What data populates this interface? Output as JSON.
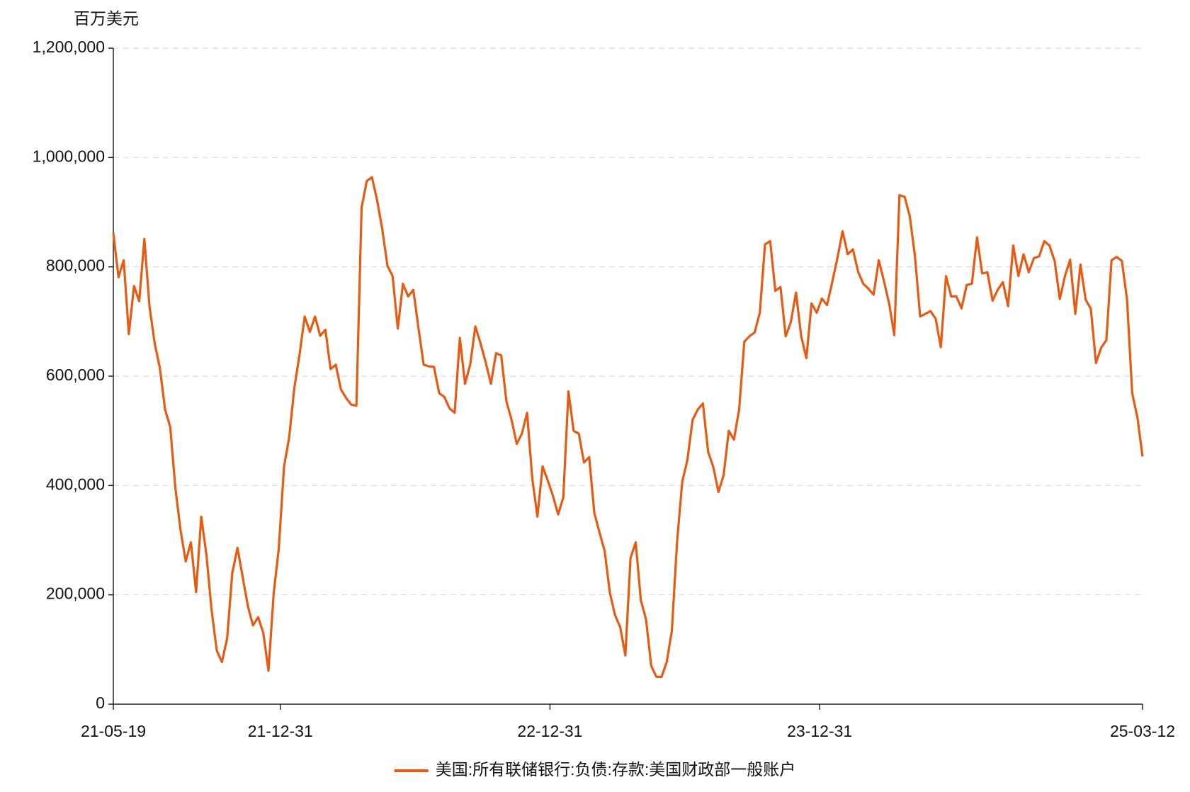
{
  "chart_data": {
    "type": "line",
    "y_label": "百万美元",
    "x": [
      "21-05-19",
      "21-05-26",
      "21-06-02",
      "21-06-09",
      "21-06-16",
      "21-06-23",
      "21-06-30",
      "21-07-07",
      "21-07-14",
      "21-07-21",
      "21-07-28",
      "21-08-04",
      "21-08-11",
      "21-08-18",
      "21-08-25",
      "21-09-01",
      "21-09-08",
      "21-09-15",
      "21-09-22",
      "21-09-29",
      "21-10-06",
      "21-10-13",
      "21-10-20",
      "21-10-27",
      "21-11-03",
      "21-11-10",
      "21-11-17",
      "21-11-24",
      "21-12-01",
      "21-12-08",
      "21-12-15",
      "21-12-22",
      "21-12-29",
      "22-01-05",
      "22-01-12",
      "22-01-19",
      "22-01-26",
      "22-02-02",
      "22-02-09",
      "22-02-16",
      "22-02-23",
      "22-03-02",
      "22-03-09",
      "22-03-16",
      "22-03-23",
      "22-03-30",
      "22-04-06",
      "22-04-13",
      "22-04-20",
      "22-04-27",
      "22-05-04",
      "22-05-11",
      "22-05-18",
      "22-05-25",
      "22-06-01",
      "22-06-08",
      "22-06-15",
      "22-06-22",
      "22-06-29",
      "22-07-06",
      "22-07-13",
      "22-07-20",
      "22-07-27",
      "22-08-03",
      "22-08-10",
      "22-08-17",
      "22-08-24",
      "22-08-31",
      "22-09-07",
      "22-09-14",
      "22-09-21",
      "22-09-28",
      "22-10-05",
      "22-10-12",
      "22-10-19",
      "22-10-26",
      "22-11-02",
      "22-11-09",
      "22-11-16",
      "22-11-23",
      "22-11-30",
      "22-12-07",
      "22-12-14",
      "22-12-21",
      "22-12-28",
      "23-01-04",
      "23-01-11",
      "23-01-18",
      "23-01-25",
      "23-02-01",
      "23-02-08",
      "23-02-15",
      "23-02-22",
      "23-03-01",
      "23-03-08",
      "23-03-15",
      "23-03-22",
      "23-03-29",
      "23-04-05",
      "23-04-12",
      "23-04-19",
      "23-04-26",
      "23-05-03",
      "23-05-10",
      "23-05-17",
      "23-05-24",
      "23-05-31",
      "23-06-07",
      "23-06-14",
      "23-06-21",
      "23-06-28",
      "23-07-05",
      "23-07-12",
      "23-07-19",
      "23-07-26",
      "23-08-02",
      "23-08-09",
      "23-08-16",
      "23-08-23",
      "23-08-30",
      "23-09-06",
      "23-09-13",
      "23-09-20",
      "23-09-27",
      "23-10-04",
      "23-10-11",
      "23-10-18",
      "23-10-25",
      "23-11-01",
      "23-11-08",
      "23-11-15",
      "23-11-22",
      "23-11-29",
      "23-12-06",
      "23-12-13",
      "23-12-20",
      "23-12-27",
      "24-01-03",
      "24-01-10",
      "24-01-17",
      "24-01-24",
      "24-01-31",
      "24-02-07",
      "24-02-14",
      "24-02-21",
      "24-02-28",
      "24-03-06",
      "24-03-13",
      "24-03-20",
      "24-03-27",
      "24-04-03",
      "24-04-10",
      "24-04-17",
      "24-04-24",
      "24-05-01",
      "24-05-08",
      "24-05-15",
      "24-05-22",
      "24-05-29",
      "24-06-05",
      "24-06-12",
      "24-06-19",
      "24-06-26",
      "24-07-03",
      "24-07-10",
      "24-07-17",
      "24-07-24",
      "24-07-31",
      "24-08-07",
      "24-08-14",
      "24-08-21",
      "24-08-28",
      "24-09-04",
      "24-09-11",
      "24-09-18",
      "24-09-25",
      "24-10-02",
      "24-10-09",
      "24-10-16",
      "24-10-23",
      "24-10-30",
      "24-11-06",
      "24-11-13",
      "24-11-20",
      "24-11-27",
      "24-12-04",
      "24-12-11",
      "24-12-18",
      "24-12-25",
      "25-01-01",
      "25-01-08",
      "25-01-15",
      "25-01-22",
      "25-01-29",
      "25-02-05",
      "25-02-12",
      "25-02-19",
      "25-02-26",
      "25-03-05",
      "25-03-12"
    ],
    "series": [
      {
        "name": "美国:所有联储银行:负债:存款:美国财政部一般账户",
        "color": "#e85a12",
        "values": [
          862000,
          781000,
          812000,
          677000,
          765000,
          737000,
          851000,
          727000,
          660000,
          615000,
          539000,
          507000,
          395000,
          318000,
          261000,
          296000,
          205000,
          343000,
          273000,
          172000,
          98000,
          77000,
          120000,
          240000,
          286000,
          233000,
          180000,
          144000,
          159000,
          130000,
          61000,
          202000,
          286000,
          434000,
          488000,
          579000,
          639000,
          709000,
          681000,
          709000,
          674000,
          685000,
          613000,
          621000,
          576000,
          560000,
          548000,
          546000,
          908000,
          957000,
          964000,
          922000,
          869000,
          802000,
          783000,
          687000,
          769000,
          746000,
          758000,
          688000,
          621000,
          618000,
          617000,
          569000,
          562000,
          541000,
          533000,
          670000,
          586000,
          621000,
          691000,
          660000,
          625000,
          586000,
          642000,
          638000,
          554000,
          520000,
          476000,
          495000,
          533000,
          413000,
          343000,
          435000,
          409000,
          381000,
          347000,
          378000,
          572000,
          500000,
          495000,
          442000,
          452000,
          350000,
          314000,
          280000,
          204000,
          163000,
          141000,
          89000,
          267000,
          296000,
          190000,
          155000,
          70000,
          50000,
          50000,
          77000,
          135000,
          297000,
          407000,
          447000,
          520000,
          539000,
          550000,
          462000,
          434000,
          388000,
          419000,
          500000,
          484000,
          539000,
          663000,
          673000,
          680000,
          716000,
          841000,
          847000,
          756000,
          763000,
          673000,
          699000,
          753000,
          673000,
          633000,
          733000,
          716000,
          742000,
          730000,
          772000,
          816000,
          865000,
          823000,
          832000,
          791000,
          769000,
          760000,
          749000,
          812000,
          774000,
          733000,
          675000,
          931000,
          928000,
          892000,
          819000,
          709000,
          714000,
          719000,
          705000,
          653000,
          783000,
          746000,
          746000,
          724000,
          767000,
          769000,
          854000,
          788000,
          790000,
          738000,
          758000,
          772000,
          728000,
          839000,
          783000,
          823000,
          790000,
          816000,
          819000,
          847000,
          839000,
          811000,
          741000,
          783000,
          813000,
          714000,
          804000,
          740000,
          723000,
          624000,
          652000,
          666000,
          812000,
          818000,
          811000,
          740000,
          569000,
          525000,
          453000
        ]
      }
    ],
    "xticks": [
      "21-05-19",
      "21-12-31",
      "22-12-31",
      "23-12-31",
      "25-03-12"
    ],
    "ylim": [
      0,
      1200000
    ],
    "yticks": [
      0,
      {
        "value": 200000,
        "label": "200,000"
      },
      {
        "value": 400000,
        "label": "400,000"
      },
      {
        "value": 600000,
        "label": "600,000"
      },
      {
        "value": 800000,
        "label": "800,000"
      },
      {
        "value": 1000000,
        "label": "1,000,000"
      },
      {
        "value": 1200000,
        "label": "1,200,000"
      }
    ],
    "grid": true
  }
}
